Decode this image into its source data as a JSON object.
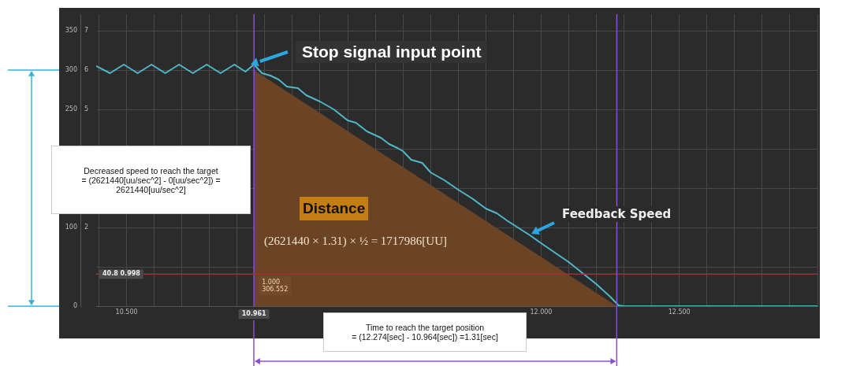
{
  "chart_data": {
    "type": "line",
    "x": [
      10.39,
      10.44,
      10.49,
      10.54,
      10.59,
      10.64,
      10.69,
      10.74,
      10.79,
      10.84,
      10.89,
      10.93,
      10.961,
      10.99,
      11.02,
      11.05,
      11.08,
      11.12,
      11.15,
      11.2,
      11.25,
      11.3,
      11.33,
      11.37,
      11.42,
      11.45,
      11.48,
      11.5,
      11.53,
      11.57,
      11.6,
      11.65,
      11.7,
      11.75,
      11.8,
      11.84,
      11.88,
      11.92,
      11.96,
      12.0,
      12.05,
      12.1,
      12.15,
      12.2,
      12.25,
      12.28,
      12.3,
      13.0
    ],
    "series": [
      {
        "type": "area",
        "color": "#6b4325",
        "x": [
          10.961,
          12.274
        ],
        "values": [
          300,
          0
        ]
      },
      {
        "color": "#4fb8c8",
        "values": [
          305,
          296,
          307,
          296,
          307,
          296,
          307,
          296,
          307,
          296,
          307,
          298,
          307,
          296,
          293,
          288,
          279,
          277,
          268,
          260,
          250,
          236,
          233,
          222,
          214,
          206,
          201,
          197,
          186,
          182,
          170,
          160,
          148,
          137,
          124,
          118,
          108,
          99,
          90,
          80,
          68,
          56,
          42,
          28,
          12,
          1,
          0,
          0
        ]
      }
    ],
    "xlim": [
      10.39,
      13.0
    ],
    "xticks": [
      {
        "value": 10.4,
        "label": null
      },
      {
        "value": 10.5,
        "label": "10.500"
      },
      {
        "value": 10.6,
        "label": null
      },
      {
        "value": 10.7,
        "label": null
      },
      {
        "value": 10.8,
        "label": null
      },
      {
        "value": 10.9,
        "label": null
      },
      {
        "value": 11.0,
        "label": null
      },
      {
        "value": 11.1,
        "label": null
      },
      {
        "value": 11.2,
        "label": null
      },
      {
        "value": 11.3,
        "label": null
      },
      {
        "value": 11.4,
        "label": null
      },
      {
        "value": 11.5,
        "label": null
      },
      {
        "value": 11.6,
        "label": null
      },
      {
        "value": 11.7,
        "label": null
      },
      {
        "value": 11.8,
        "label": null
      },
      {
        "value": 11.9,
        "label": null
      },
      {
        "value": 12.0,
        "label": "12.000"
      },
      {
        "value": 12.1,
        "label": null
      },
      {
        "value": 12.2,
        "label": null
      },
      {
        "value": 12.3,
        "label": null
      },
      {
        "value": 12.4,
        "label": null
      },
      {
        "value": 12.5,
        "label": "12.500"
      },
      {
        "value": 12.6,
        "label": null
      },
      {
        "value": 12.7,
        "label": null
      },
      {
        "value": 12.8,
        "label": null
      },
      {
        "value": 12.9,
        "label": null
      },
      {
        "value": 13.0,
        "label": null
      }
    ],
    "ylim": [
      0,
      371
    ],
    "yticks": [
      0,
      {
        "value": 50,
        "label": null
      },
      100,
      {
        "value": 150,
        "label": null
      },
      {
        "value": 200,
        "label": null
      },
      250,
      300,
      350
    ],
    "y2lim": [
      0,
      7.42
    ],
    "y2ticks": [
      2,
      5,
      6,
      7
    ],
    "grid": true,
    "legend": false,
    "marker": "none",
    "line_style": "solid",
    "ref_lines": [
      {
        "axis": "x",
        "value": 10.961,
        "label": "10.961",
        "color": "#8a4fd0"
      },
      {
        "axis": "y",
        "value": 40.8,
        "label": "40.8 0.998",
        "color": "#9a3535"
      },
      {
        "axis": "x",
        "value": 12.274,
        "label": null,
        "color": "#8a4fd0"
      }
    ],
    "annotations": [
      "Stop signal input point",
      "Feedback Speed",
      "Distance",
      "(2621440  × 1.31) × ½ = 1717986[UU]",
      {
        "text": "1.000\n306.552",
        "x": 10.961,
        "y": 40.8
      },
      "Decreased speed to reach the target\n= (2621440[uu/sec^2] - 0[uu/sec^2]) =\n2621440[uu/sec^2]",
      "Time to reach the target position\n= (12.274[sec] - 10.964[sec]) =1.31[sec]"
    ]
  }
}
